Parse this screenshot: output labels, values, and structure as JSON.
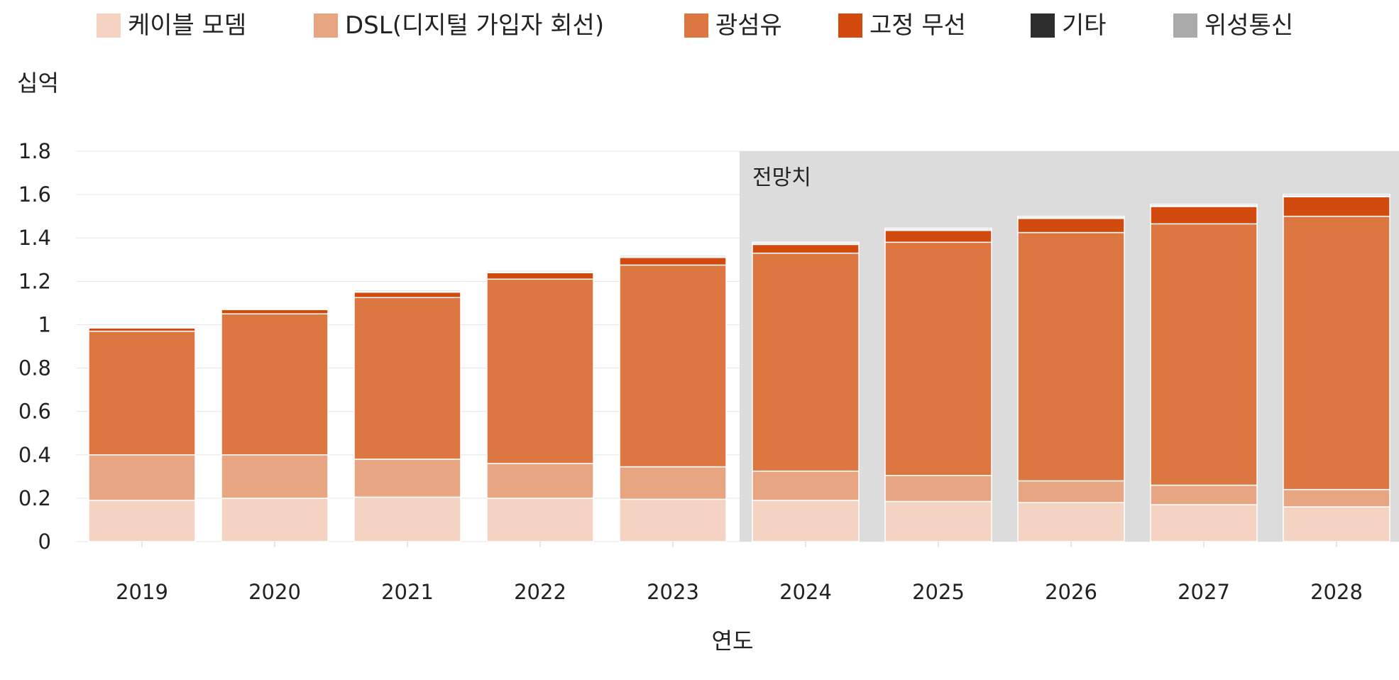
{
  "chart_data": {
    "type": "bar",
    "stacked": true,
    "title": "",
    "xlabel": "연도",
    "ylabel": "십억",
    "ylim": [
      0,
      1.8
    ],
    "yticks": [
      "0",
      "0.2",
      "0.4",
      "0.6",
      "0.8",
      "1",
      "1.2",
      "1.4",
      "1.6",
      "1.8"
    ],
    "grid": true,
    "legend_position": "top",
    "categories": [
      "2019",
      "2020",
      "2021",
      "2022",
      "2023",
      "2024",
      "2025",
      "2026",
      "2027",
      "2028"
    ],
    "forecast": {
      "label": "전망치",
      "from": "2024",
      "to": "2028"
    },
    "series": [
      {
        "name": "케이블 모뎀",
        "color": "#f4d3c2",
        "values": [
          0.19,
          0.2,
          0.205,
          0.2,
          0.195,
          0.19,
          0.185,
          0.18,
          0.17,
          0.16
        ]
      },
      {
        "name": "DSL(디지털 가입자 회선)",
        "color": "#e8a581",
        "values": [
          0.21,
          0.2,
          0.175,
          0.16,
          0.15,
          0.135,
          0.12,
          0.1,
          0.09,
          0.08
        ]
      },
      {
        "name": "광섬유",
        "color": "#dd7742",
        "values": [
          0.57,
          0.65,
          0.745,
          0.85,
          0.93,
          1.005,
          1.075,
          1.145,
          1.205,
          1.26
        ]
      },
      {
        "name": "고정 무선",
        "color": "#d34a0f",
        "values": [
          0.015,
          0.02,
          0.025,
          0.03,
          0.035,
          0.04,
          0.055,
          0.065,
          0.08,
          0.09
        ]
      },
      {
        "name": "기타",
        "color": "#2d2d2d",
        "values": [
          0.004,
          0.004,
          0.004,
          0.004,
          0.004,
          0.004,
          0.004,
          0.004,
          0.004,
          0.004
        ]
      },
      {
        "name": "위성통신",
        "color": "#aaaaaa",
        "values": [
          0.005,
          0.005,
          0.006,
          0.006,
          0.006,
          0.006,
          0.006,
          0.006,
          0.006,
          0.007
        ]
      }
    ]
  }
}
